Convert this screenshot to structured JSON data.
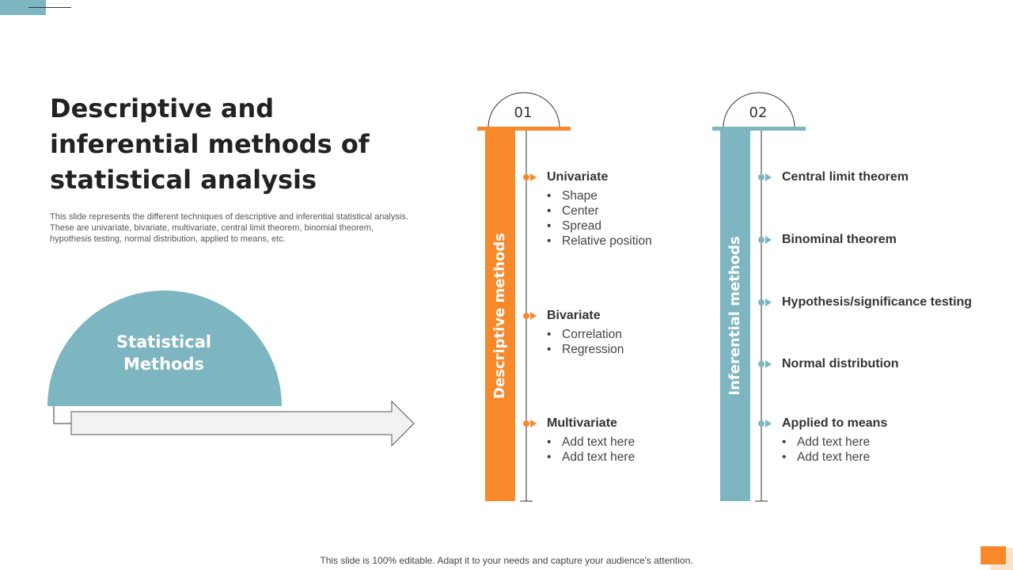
{
  "title": "Descriptive and inferential methods of statistical analysis",
  "description": "This slide represents the different techniques of descriptive and inferential statistical analysis. These are univariate, bivariate, multivariate, central limit theorem, binomial theorem, hypothesis testing, normal distribution, applied to means, etc.",
  "hub": {
    "label_line1": "Statistical",
    "label_line2": "Methods"
  },
  "colors": {
    "orange": "#F7892B",
    "teal": "#7DB5C1",
    "arrow_fill": "#F2F2F2"
  },
  "columns": [
    {
      "number": "01",
      "title": "Descriptive methods",
      "items": [
        {
          "head": "Univariate",
          "bullets": [
            "Shape",
            "Center",
            "Spread",
            "Relative position"
          ]
        },
        {
          "head": "Bivariate",
          "bullets": [
            "Correlation",
            "Regression"
          ]
        },
        {
          "head": "Multivariate",
          "bullets": [
            "Add text here",
            "Add text here"
          ]
        }
      ]
    },
    {
      "number": "02",
      "title": "Inferential methods",
      "items": [
        {
          "head": "Central limit theorem"
        },
        {
          "head": "Binominal theorem"
        },
        {
          "head": "Hypothesis/significance testing"
        },
        {
          "head": "Normal distribution"
        },
        {
          "head": "Applied to means",
          "bullets": [
            "Add text here",
            "Add text here"
          ]
        }
      ]
    }
  ],
  "footer": "This slide is 100% editable. Adapt it to your needs and capture your audience's attention."
}
